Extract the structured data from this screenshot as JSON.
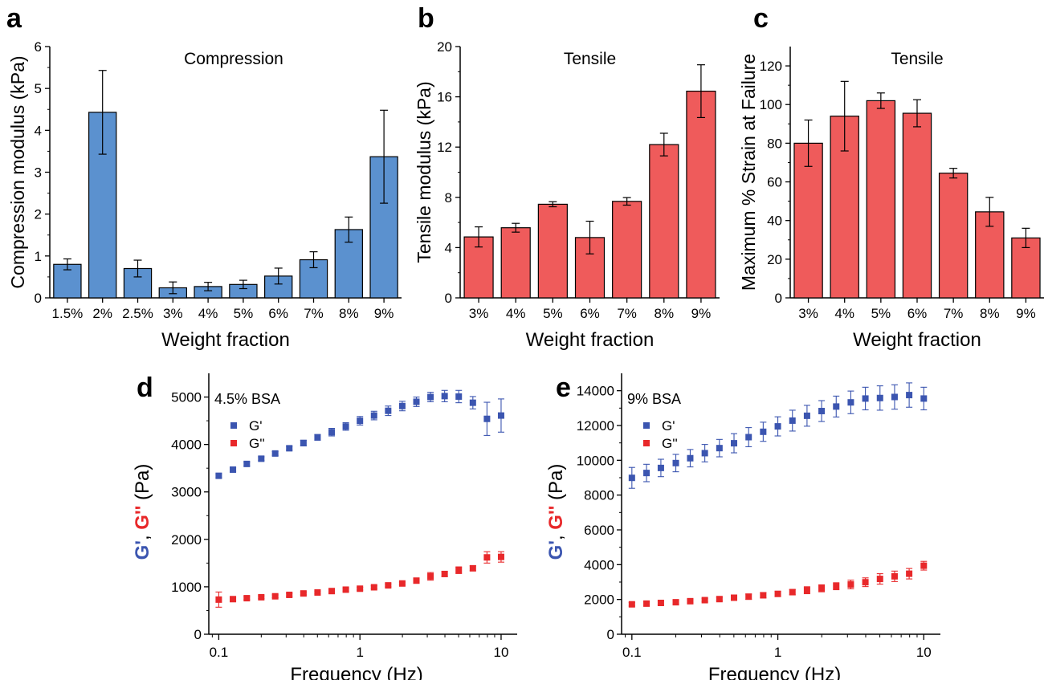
{
  "colors": {
    "blue_bar": "#5b91cf",
    "red_bar": "#ef5b5b",
    "g_prime": "#3b55b0",
    "g_double_prime": "#e8282a",
    "axis": "#000000"
  },
  "chart_data": [
    {
      "panel": "a",
      "type": "bar",
      "title": "Compression",
      "xlabel": "Weight fraction",
      "ylabel": "Compression modulus (kPa)",
      "categories": [
        "1.5%",
        "2%",
        "2.5%",
        "3%",
        "4%",
        "5%",
        "6%",
        "7%",
        "8%",
        "9%"
      ],
      "values": [
        0.8,
        4.43,
        0.7,
        0.24,
        0.27,
        0.32,
        0.52,
        0.91,
        1.63,
        3.37
      ],
      "errors": [
        0.13,
        1.0,
        0.2,
        0.14,
        0.1,
        0.1,
        0.19,
        0.19,
        0.3,
        1.11
      ],
      "ylim": [
        0,
        6
      ],
      "yticks": [
        0,
        1,
        2,
        3,
        4,
        5,
        6
      ],
      "color": "#5b91cf"
    },
    {
      "panel": "b",
      "type": "bar",
      "title": "Tensile",
      "xlabel": "Weight fraction",
      "ylabel": "Tensile modulus (kPa)",
      "categories": [
        "3%",
        "4%",
        "5%",
        "6%",
        "7%",
        "8%",
        "9%"
      ],
      "values": [
        4.85,
        5.58,
        7.45,
        4.8,
        7.68,
        12.2,
        16.45
      ],
      "errors": [
        0.8,
        0.35,
        0.2,
        1.3,
        0.3,
        0.9,
        2.1
      ],
      "ylim": [
        0,
        20
      ],
      "yticks": [
        0,
        4,
        8,
        12,
        16,
        20
      ],
      "color": "#ef5b5b"
    },
    {
      "panel": "c",
      "type": "bar",
      "title": "Tensile",
      "xlabel": "Weight fraction",
      "ylabel": "Maximum % Strain at Failure",
      "categories": [
        "3%",
        "4%",
        "5%",
        "6%",
        "7%",
        "8%",
        "9%"
      ],
      "values": [
        80,
        94,
        102,
        95.5,
        64.5,
        44.5,
        31
      ],
      "errors": [
        12,
        18,
        4,
        7,
        2.5,
        7.5,
        5
      ],
      "ylim": [
        0,
        130
      ],
      "yticks": [
        0,
        20,
        40,
        60,
        80,
        100,
        120
      ],
      "color": "#ef5b5b"
    },
    {
      "panel": "d",
      "type": "scatter",
      "annotation": "4.5% BSA",
      "xlabel": "Frequency (Hz)",
      "ylabel_parts": [
        "G'",
        ", ",
        "G''",
        " (Pa)"
      ],
      "xscale": "log",
      "xlim": [
        0.085,
        13
      ],
      "ylim": [
        0,
        5500
      ],
      "xticks": [
        0.1,
        1,
        10
      ],
      "xtick_labels": [
        "0.1",
        "1",
        "10"
      ],
      "yticks": [
        0,
        1000,
        2000,
        3000,
        4000,
        5000
      ],
      "legend": "top-left",
      "x": [
        0.1,
        0.126,
        0.158,
        0.2,
        0.251,
        0.316,
        0.398,
        0.501,
        0.631,
        0.794,
        1.0,
        1.259,
        1.585,
        1.995,
        2.512,
        3.162,
        3.981,
        5.012,
        6.31,
        7.943,
        10.0
      ],
      "series": [
        {
          "name": "G'",
          "color": "#3b55b0",
          "values": [
            3340,
            3470,
            3590,
            3700,
            3810,
            3920,
            4030,
            4150,
            4260,
            4380,
            4500,
            4610,
            4710,
            4810,
            4900,
            5000,
            5020,
            5010,
            4880,
            4540,
            4610
          ],
          "errors": [
            40,
            40,
            40,
            40,
            40,
            40,
            60,
            60,
            80,
            80,
            90,
            90,
            100,
            100,
            100,
            100,
            120,
            130,
            130,
            350,
            350
          ]
        },
        {
          "name": "G''",
          "color": "#e8282a",
          "values": [
            730,
            740,
            760,
            780,
            800,
            830,
            860,
            880,
            910,
            940,
            960,
            990,
            1030,
            1070,
            1130,
            1220,
            1270,
            1350,
            1390,
            1620,
            1630
          ],
          "errors": [
            160,
            40,
            30,
            30,
            30,
            30,
            30,
            30,
            30,
            30,
            30,
            30,
            30,
            30,
            40,
            80,
            50,
            70,
            50,
            120,
            110
          ]
        }
      ]
    },
    {
      "panel": "e",
      "type": "scatter",
      "annotation": "9% BSA",
      "xlabel": "Frequency (Hz)",
      "ylabel_parts": [
        "G'",
        ", ",
        "G''",
        " (Pa)"
      ],
      "xscale": "log",
      "xlim": [
        0.085,
        13
      ],
      "ylim": [
        0,
        15000
      ],
      "xticks": [
        0.1,
        1,
        10
      ],
      "xtick_labels": [
        "0.1",
        "1",
        "10"
      ],
      "yticks": [
        0,
        2000,
        4000,
        6000,
        8000,
        10000,
        12000,
        14000
      ],
      "legend": "top-left",
      "x": [
        0.1,
        0.126,
        0.158,
        0.2,
        0.251,
        0.316,
        0.398,
        0.501,
        0.631,
        0.794,
        1.0,
        1.259,
        1.585,
        1.995,
        2.512,
        3.162,
        3.981,
        5.012,
        6.31,
        7.943,
        10.0
      ],
      "series": [
        {
          "name": "G'",
          "color": "#3b55b0",
          "values": [
            8990,
            9270,
            9560,
            9840,
            10120,
            10410,
            10700,
            10980,
            11330,
            11640,
            11950,
            12280,
            12560,
            12830,
            13090,
            13330,
            13550,
            13580,
            13640,
            13750,
            13550
          ],
          "errors": [
            600,
            500,
            500,
            500,
            500,
            500,
            500,
            550,
            550,
            550,
            550,
            600,
            600,
            600,
            600,
            650,
            650,
            700,
            700,
            700,
            650
          ]
        },
        {
          "name": "G''",
          "color": "#e8282a",
          "values": [
            1720,
            1760,
            1800,
            1840,
            1900,
            1960,
            2020,
            2100,
            2160,
            2240,
            2320,
            2420,
            2530,
            2640,
            2760,
            2860,
            2990,
            3180,
            3330,
            3480,
            3940
          ],
          "errors": [
            100,
            100,
            100,
            100,
            100,
            100,
            100,
            150,
            150,
            150,
            150,
            150,
            200,
            200,
            200,
            250,
            250,
            300,
            300,
            300,
            250
          ]
        }
      ]
    }
  ]
}
